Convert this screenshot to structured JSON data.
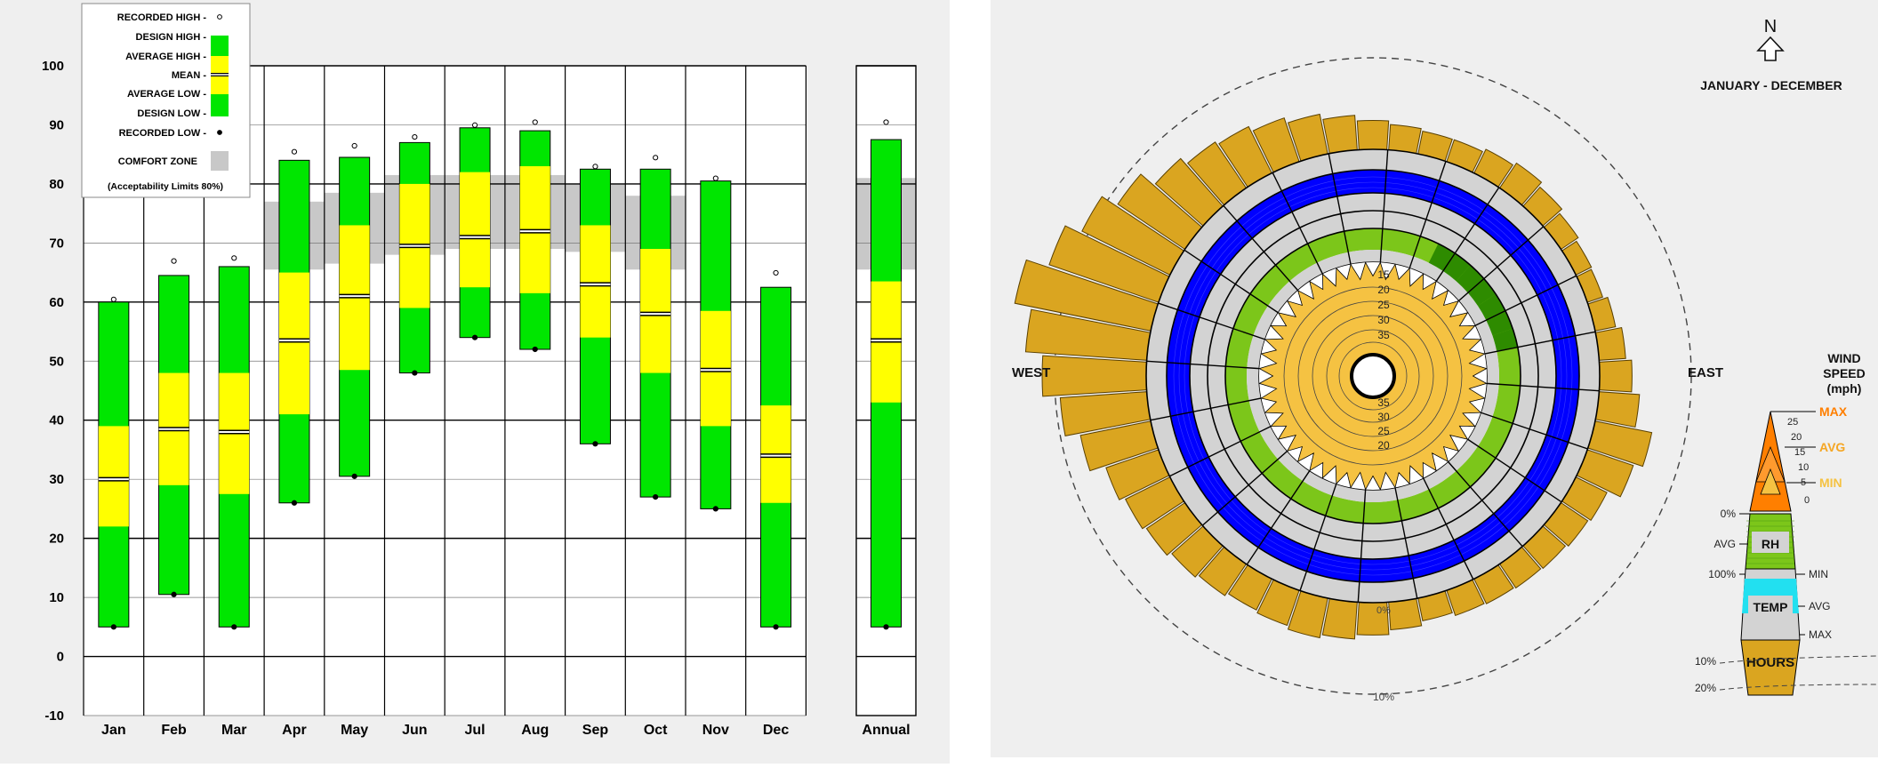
{
  "chart_data": [
    {
      "type": "box",
      "title": "",
      "xlabel": "",
      "ylabel": "",
      "ylim": [
        -10,
        100
      ],
      "yticks": [
        "100",
        "90",
        "80",
        "70",
        "60",
        "50",
        "40",
        "30",
        "20",
        "10",
        "0",
        "-10"
      ],
      "categories": [
        "Jan",
        "Feb",
        "Mar",
        "Apr",
        "May",
        "Jun",
        "Jul",
        "Aug",
        "Sep",
        "Oct",
        "Nov",
        "Dec"
      ],
      "annual_label": "Annual",
      "legend": {
        "items": [
          "RECORDED HIGH -",
          "DESIGN HIGH -",
          "AVERAGE HIGH -",
          "MEAN -",
          "AVERAGE LOW -",
          "DESIGN LOW -",
          "RECORDED LOW -"
        ],
        "comfort_label": "COMFORT ZONE",
        "comfort_note": "(Acceptability Limits 80%)"
      },
      "colors": {
        "design": "#00e600",
        "average": "#ffff00",
        "comfort": "#c8c8c8",
        "grid": "#000000"
      },
      "months": [
        {
          "recorded_high": 60,
          "design_high": 60,
          "avg_high": 39,
          "mean": 30,
          "avg_low": 22,
          "design_low": 5,
          "recorded_low": 5,
          "comfort": null
        },
        {
          "recorded_high": 66.5,
          "design_high": 64.5,
          "avg_high": 48,
          "mean": 38.5,
          "avg_low": 29,
          "design_low": 10.5,
          "recorded_low": 10.5,
          "comfort": null
        },
        {
          "recorded_high": 67,
          "design_high": 66,
          "avg_high": 48,
          "mean": 38,
          "avg_low": 27.5,
          "design_low": 5,
          "recorded_low": 5,
          "comfort": null
        },
        {
          "recorded_high": 85,
          "design_high": 84,
          "avg_high": 65,
          "mean": 53.5,
          "avg_low": 41,
          "design_low": 26,
          "recorded_low": 26,
          "comfort": [
            65.5,
            77
          ]
        },
        {
          "recorded_high": 86,
          "design_high": 84.5,
          "avg_high": 73,
          "mean": 61,
          "avg_low": 48.5,
          "design_low": 30.5,
          "recorded_low": 30.5,
          "comfort": [
            66.5,
            78.5
          ]
        },
        {
          "recorded_high": 87.5,
          "design_high": 87,
          "avg_high": 80,
          "mean": 69.5,
          "avg_low": 59,
          "design_low": 48,
          "recorded_low": 48,
          "comfort": [
            68,
            81.5
          ]
        },
        {
          "recorded_high": 89.5,
          "design_high": 89.5,
          "avg_high": 82,
          "mean": 71,
          "avg_low": 62.5,
          "design_low": 54,
          "recorded_low": 54,
          "comfort": [
            69,
            81.5
          ]
        },
        {
          "recorded_high": 90,
          "design_high": 89,
          "avg_high": 83,
          "mean": 72,
          "avg_low": 61.5,
          "design_low": 52,
          "recorded_low": 52,
          "comfort": [
            69,
            81.5
          ]
        },
        {
          "recorded_high": 82.5,
          "design_high": 82.5,
          "avg_high": 73,
          "mean": 63,
          "avg_low": 54,
          "design_low": 36,
          "recorded_low": 36,
          "comfort": [
            68.5,
            80
          ]
        },
        {
          "recorded_high": 84,
          "design_high": 82.5,
          "avg_high": 69,
          "mean": 58,
          "avg_low": 48,
          "design_low": 27,
          "recorded_low": 27,
          "comfort": [
            65.5,
            78
          ]
        },
        {
          "recorded_high": 80.5,
          "design_high": 80.5,
          "avg_high": 58.5,
          "mean": 48.5,
          "avg_low": 39,
          "design_low": 25,
          "recorded_low": 25,
          "comfort": null
        },
        {
          "recorded_high": 64.5,
          "design_high": 62.5,
          "avg_high": 42.5,
          "mean": 34,
          "avg_low": 26,
          "design_low": 5,
          "recorded_low": 5,
          "comfort": null
        }
      ],
      "annual": {
        "recorded_high": 90,
        "design_high": 87.5,
        "avg_high": 63.5,
        "mean": 53.5,
        "avg_low": 43,
        "design_low": 5,
        "recorded_low": 5,
        "comfort": [
          65.5,
          81
        ]
      }
    },
    {
      "type": "wind-wheel",
      "period": "JANUARY - DECEMBER",
      "north_symbol": "N",
      "directions": {
        "west": "WEST",
        "east": "EAST"
      },
      "speed_ring_labels_top": [
        "15",
        "20",
        "25",
        "30",
        "35"
      ],
      "speed_ring_labels_bottom": [
        "35",
        "30",
        "25",
        "20"
      ],
      "hours_pct_labels": [
        "0%",
        "10%"
      ],
      "colors": {
        "hours": "#daa520",
        "temp": "#0000ff",
        "rh": "#7cc61a",
        "wind_max": "#ff7f00",
        "wind_min": "#f5c242",
        "ring": "#d3d3d3"
      },
      "key": {
        "title": [
          "WIND",
          "SPEED",
          "(mph)"
        ],
        "max": "MAX",
        "avg": "AVG",
        "min": "MIN",
        "speed_ticks": [
          "25",
          "20",
          "15",
          "10",
          "5",
          "0"
        ],
        "rh_label": "RH",
        "temp_label": "TEMP",
        "hours_label": "HOURS",
        "rh_zero": "0%",
        "rh_avg": "AVG",
        "rh_full": "100%",
        "temp_min": "MIN",
        "temp_avg": "AVG",
        "temp_max": "MAX",
        "hours_10": "10%",
        "hours_20": "20%"
      },
      "hours_by_sector": [
        2.5,
        2.2,
        2.0,
        2.0,
        2.3,
        2.6,
        2.2,
        1.8,
        1.5,
        1.4,
        1.8,
        2.3,
        2.8,
        3.5,
        5.0,
        4.2,
        3.0,
        2.8,
        2.6,
        2.5,
        2.4,
        2.3,
        2.0,
        2.4,
        2.8,
        3.2,
        3.5,
        3.2,
        3.0,
        3.3,
        3.6,
        4.0,
        4.3,
        4.8,
        6.2,
        7.5,
        9.0,
        10.5,
        12.0,
        10.0,
        8.5,
        7.0,
        5.5,
        4.8,
        4.5,
        4.0,
        3.5,
        3.0
      ],
      "rh_dark_sectors": [
        4,
        5,
        6,
        7,
        8,
        9,
        10
      ],
      "wind_max_by_sector": [
        13,
        11,
        14,
        10,
        13,
        11,
        14,
        11,
        13,
        10,
        14,
        12,
        13,
        10,
        22,
        11,
        13,
        10,
        14,
        11,
        13,
        10,
        14,
        11,
        13,
        10,
        14,
        11,
        13,
        10,
        14,
        11,
        13,
        10,
        14,
        11,
        13,
        10,
        14,
        11,
        13,
        10,
        14,
        11,
        13,
        10,
        14,
        11
      ],
      "wind_min_by_sector": [
        5,
        6,
        5,
        6,
        5,
        6,
        5,
        6,
        5,
        6,
        5,
        6,
        5,
        6,
        5,
        6,
        5,
        6,
        5,
        6,
        5,
        6,
        5,
        6,
        5,
        6,
        5,
        6,
        5,
        6,
        5,
        6,
        5,
        6,
        5,
        6,
        5,
        6,
        5,
        6,
        5,
        6,
        5,
        6,
        5,
        6,
        5,
        6
      ]
    }
  ]
}
